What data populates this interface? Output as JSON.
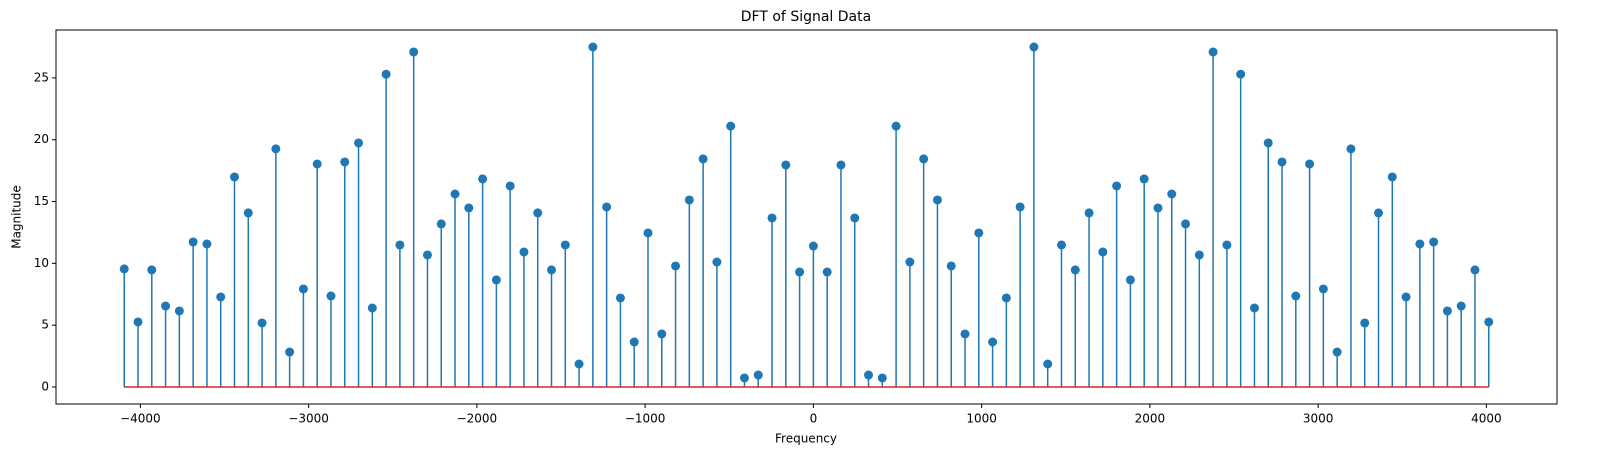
{
  "chart_data": {
    "type": "stem",
    "title": "DFT of Signal Data",
    "x_label": "Frequency",
    "y_label": "Magnitude",
    "x": [
      -4096,
      -4014.08,
      -3932.16,
      -3850.24,
      -3768.32,
      -3686.4,
      -3604.48,
      -3522.56,
      -3440.64,
      -3358.72,
      -3276.8,
      -3194.88,
      -3112.96,
      -3031.04,
      -2949.12,
      -2867.2,
      -2785.28,
      -2703.36,
      -2621.44,
      -2539.52,
      -2457.6,
      -2375.68,
      -2293.76,
      -2211.84,
      -2129.92,
      -2048,
      -1966.08,
      -1884.16,
      -1802.24,
      -1720.32,
      -1638.4,
      -1556.48,
      -1474.56,
      -1392.64,
      -1310.72,
      -1228.8,
      -1146.88,
      -1064.96,
      -983.04,
      -901.12,
      -819.2,
      -737.28,
      -655.36,
      -573.44,
      -491.52,
      -409.6,
      -327.68,
      -245.76,
      -163.84,
      -81.92,
      0,
      81.92,
      163.84,
      245.76,
      327.68,
      409.6,
      491.52,
      573.44,
      655.36,
      737.28,
      819.2,
      901.12,
      983.04,
      1064.96,
      1146.88,
      1228.8,
      1310.72,
      1392.64,
      1474.56,
      1556.48,
      1638.4,
      1720.32,
      1802.24,
      1884.16,
      1966.08,
      2048,
      2129.92,
      2211.84,
      2293.76,
      2375.68,
      2457.6,
      2539.52,
      2621.44,
      2703.36,
      2785.28,
      2867.2,
      2949.12,
      3031.04,
      3112.96,
      3194.88,
      3276.8,
      3358.72,
      3440.64,
      3522.56,
      3604.48,
      3686.4,
      3768.32,
      3850.24,
      3932.16,
      4014.08
    ],
    "values": [
      9.55,
      5.26,
      9.47,
      6.55,
      6.15,
      11.73,
      11.57,
      7.28,
      16.99,
      14.08,
      5.18,
      19.26,
      2.83,
      7.93,
      18.04,
      7.36,
      18.2,
      19.74,
      6.39,
      25.3,
      11.49,
      27.1,
      10.68,
      13.19,
      15.61,
      14.48,
      16.83,
      8.66,
      16.26,
      10.92,
      14.08,
      9.47,
      11.49,
      1.86,
      27.5,
      14.56,
      7.2,
      3.64,
      12.46,
      4.29,
      9.79,
      15.13,
      18.45,
      10.11,
      21.1,
      0.73,
      0.97,
      13.67,
      17.96,
      9.3,
      11.4,
      9.3,
      17.96,
      13.67,
      0.97,
      0.73,
      21.1,
      10.11,
      18.45,
      15.13,
      9.79,
      4.29,
      12.46,
      3.64,
      7.2,
      14.56,
      27.5,
      1.86,
      11.49,
      9.47,
      14.08,
      10.92,
      16.26,
      8.66,
      16.83,
      14.48,
      15.61,
      13.19,
      10.68,
      27.1,
      11.49,
      25.3,
      6.39,
      19.74,
      18.2,
      7.36,
      18.04,
      7.93,
      2.83,
      19.26,
      5.18,
      14.08,
      16.99,
      7.28,
      11.57,
      11.73,
      6.15,
      6.55,
      9.47,
      5.26
    ],
    "color": "#1f77b4",
    "baseline_color": "#d62728",
    "xlim": [
      -4501.5,
      4419.6
    ],
    "ylim": [
      -1.375,
      28.875
    ],
    "xticks": [
      {
        "value": -4000,
        "label": "−4000"
      },
      {
        "value": -3000,
        "label": "−3000"
      },
      {
        "value": -2000,
        "label": "−2000"
      },
      {
        "value": -1000,
        "label": "−1000"
      },
      0,
      1000,
      2000,
      3000,
      4000
    ],
    "yticks": [
      0,
      5,
      10,
      15,
      20,
      25
    ]
  }
}
